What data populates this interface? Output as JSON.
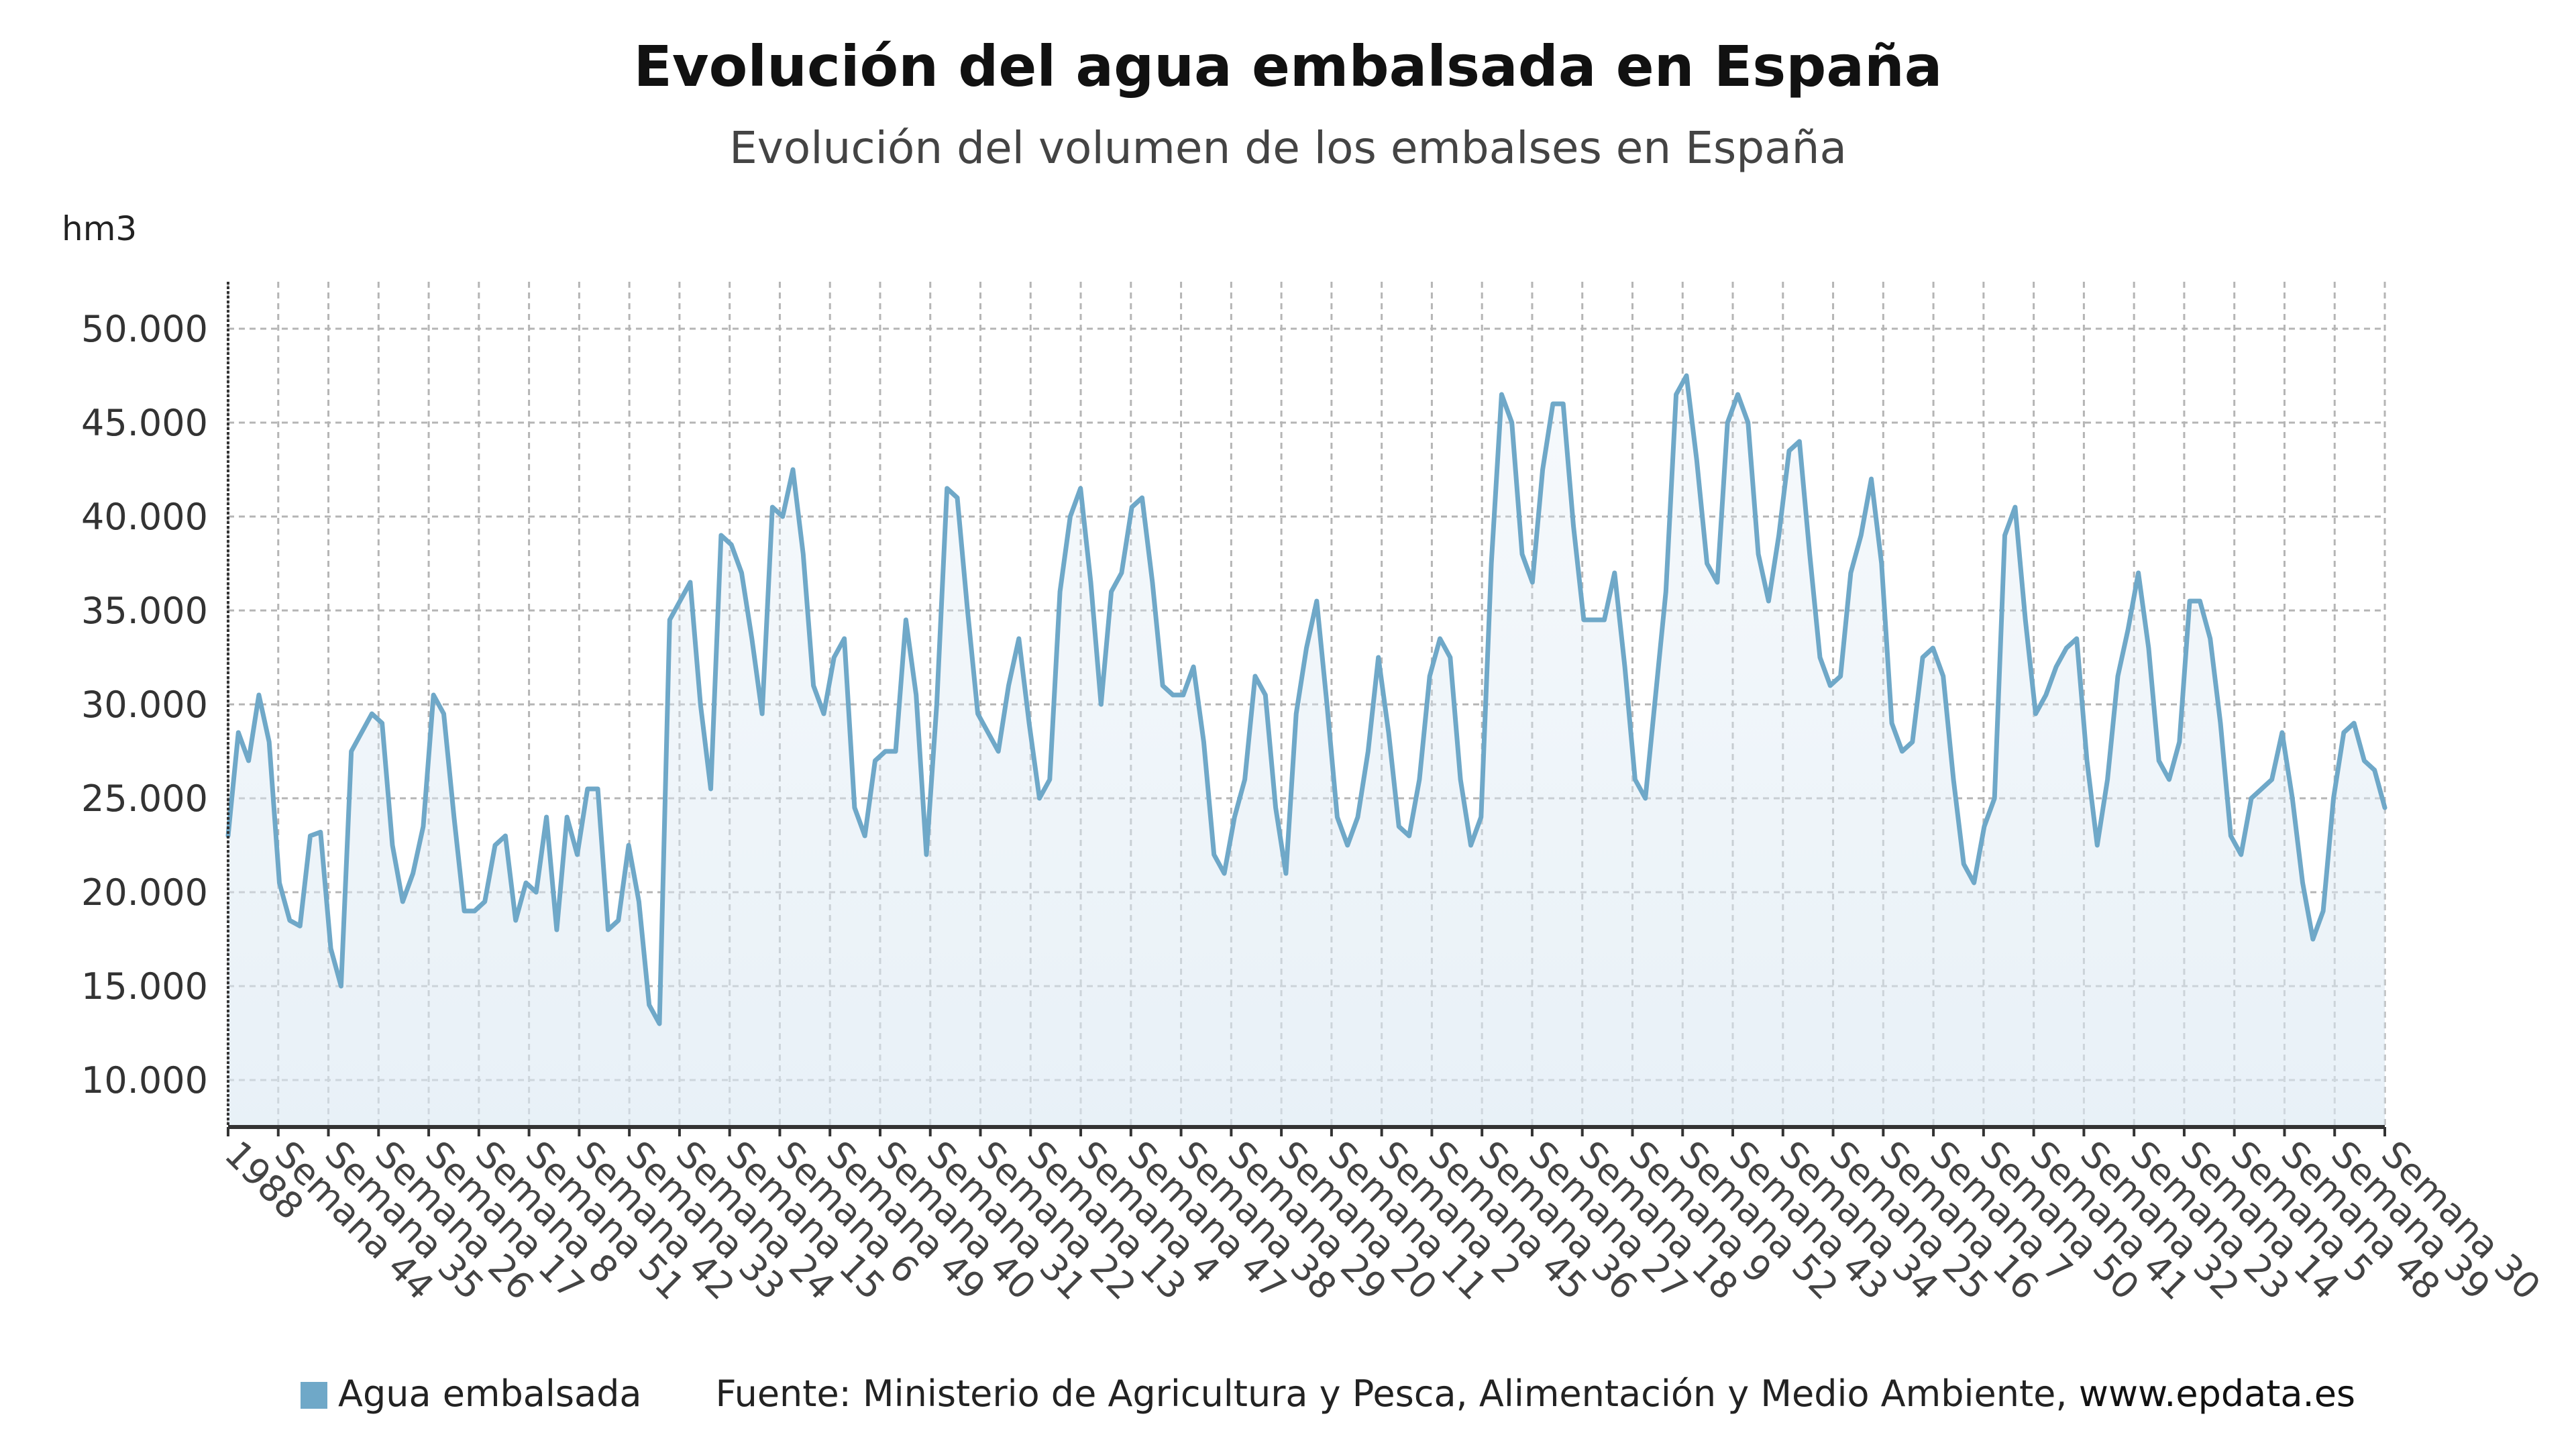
{
  "header": {
    "title": "Evolución del agua embalsada en España",
    "subtitle": "Evolución del volumen de los embalses en España"
  },
  "axis": {
    "y_unit": "hm3"
  },
  "legend": {
    "series_label": "Agua embalsada",
    "source": "Fuente: Ministerio de Agricultura y Pesca, Alimentación y Medio Ambiente,",
    "site": "www.epdata.es"
  },
  "colors": {
    "line": "#6fa8c8",
    "fill": "#dce9f3",
    "grid": "#b5b5b5",
    "axis": "#333333"
  },
  "chart_data": {
    "type": "area",
    "ylim": [
      7500,
      52500
    ],
    "y_ticks": [
      10000,
      15000,
      20000,
      25000,
      30000,
      35000,
      40000,
      45000,
      50000
    ],
    "y_tick_labels": [
      "10.000",
      "15.000",
      "20.000",
      "25.000",
      "30.000",
      "35.000",
      "40.000",
      "45.000",
      "50.000"
    ],
    "x_tick_labels": [
      "1988",
      "Semana 44",
      "Semana 35",
      "Semana 26",
      "Semana 17",
      "Semana 8",
      "Semana 51",
      "Semana 42",
      "Semana 33",
      "Semana 24",
      "Semana 15",
      "Semana 6",
      "Semana 49",
      "Semana 40",
      "Semana 31",
      "Semana 22",
      "Semana 13",
      "Semana 4",
      "Semana 47",
      "Semana 38",
      "Semana 29",
      "Semana 20",
      "Semana 11",
      "Semana 2",
      "Semana 45",
      "Semana 36",
      "Semana 27",
      "Semana 18",
      "Semana 9",
      "Semana 52",
      "Semana 43",
      "Semana 34",
      "Semana 25",
      "Semana 16",
      "Semana 7",
      "Semana 50",
      "Semana 41",
      "Semana 32",
      "Semana 23",
      "Semana 14",
      "Semana 5",
      "Semana 48",
      "Semana 39",
      "Semana 30"
    ],
    "series": [
      {
        "name": "Agua embalsada",
        "values": [
          23000,
          28500,
          27000,
          30500,
          28000,
          20500,
          18500,
          18200,
          23000,
          23200,
          17000,
          15000,
          27500,
          28500,
          29500,
          29000,
          22500,
          19500,
          21000,
          23500,
          30500,
          29500,
          24000,
          19000,
          19000,
          19500,
          22500,
          23000,
          18500,
          20500,
          20000,
          24000,
          18000,
          24000,
          22000,
          25500,
          25500,
          18000,
          18500,
          22500,
          19500,
          14000,
          13000,
          34500,
          35500,
          36500,
          30000,
          25500,
          39000,
          38500,
          37000,
          33500,
          29500,
          40500,
          40000,
          42500,
          38000,
          31000,
          29500,
          32500,
          33500,
          24500,
          23000,
          27000,
          27500,
          27500,
          34500,
          30500,
          22000,
          30000,
          41500,
          41000,
          35000,
          29500,
          28500,
          27500,
          31000,
          33500,
          29000,
          25000,
          26000,
          36000,
          40000,
          41500,
          36500,
          30000,
          36000,
          37000,
          40500,
          41000,
          36500,
          31000,
          30500,
          30500,
          32000,
          28000,
          22000,
          21000,
          24000,
          26000,
          31500,
          30500,
          24500,
          21000,
          29500,
          33000,
          35500,
          30000,
          24000,
          22500,
          24000,
          27500,
          32500,
          28500,
          23500,
          23000,
          26000,
          31500,
          33500,
          32500,
          26000,
          22500,
          24000,
          37500,
          46500,
          45000,
          38000,
          36500,
          42500,
          46000,
          46000,
          39500,
          34500,
          34500,
          34500,
          37000,
          32000,
          26000,
          25000,
          30500,
          36000,
          46500,
          47500,
          43000,
          37500,
          36500,
          45000,
          46500,
          45000,
          38000,
          35500,
          39000,
          43500,
          44000,
          38000,
          32500,
          31000,
          31500,
          37000,
          39000,
          42000,
          37500,
          29000,
          27500,
          28000,
          32500,
          33000,
          31500,
          26000,
          21500,
          20500,
          23500,
          25000,
          39000,
          40500,
          34500,
          29500,
          30500,
          32000,
          33000,
          33500,
          27000,
          22500,
          26000,
          31500,
          34000,
          37000,
          33000,
          27000,
          26000,
          28000,
          35500,
          35500,
          33500,
          29000,
          23000,
          22000,
          25000,
          25500,
          26000,
          28500,
          25000,
          20500,
          17500,
          19000,
          25000,
          28500,
          29000,
          27000,
          26500,
          24500
        ]
      }
    ]
  }
}
